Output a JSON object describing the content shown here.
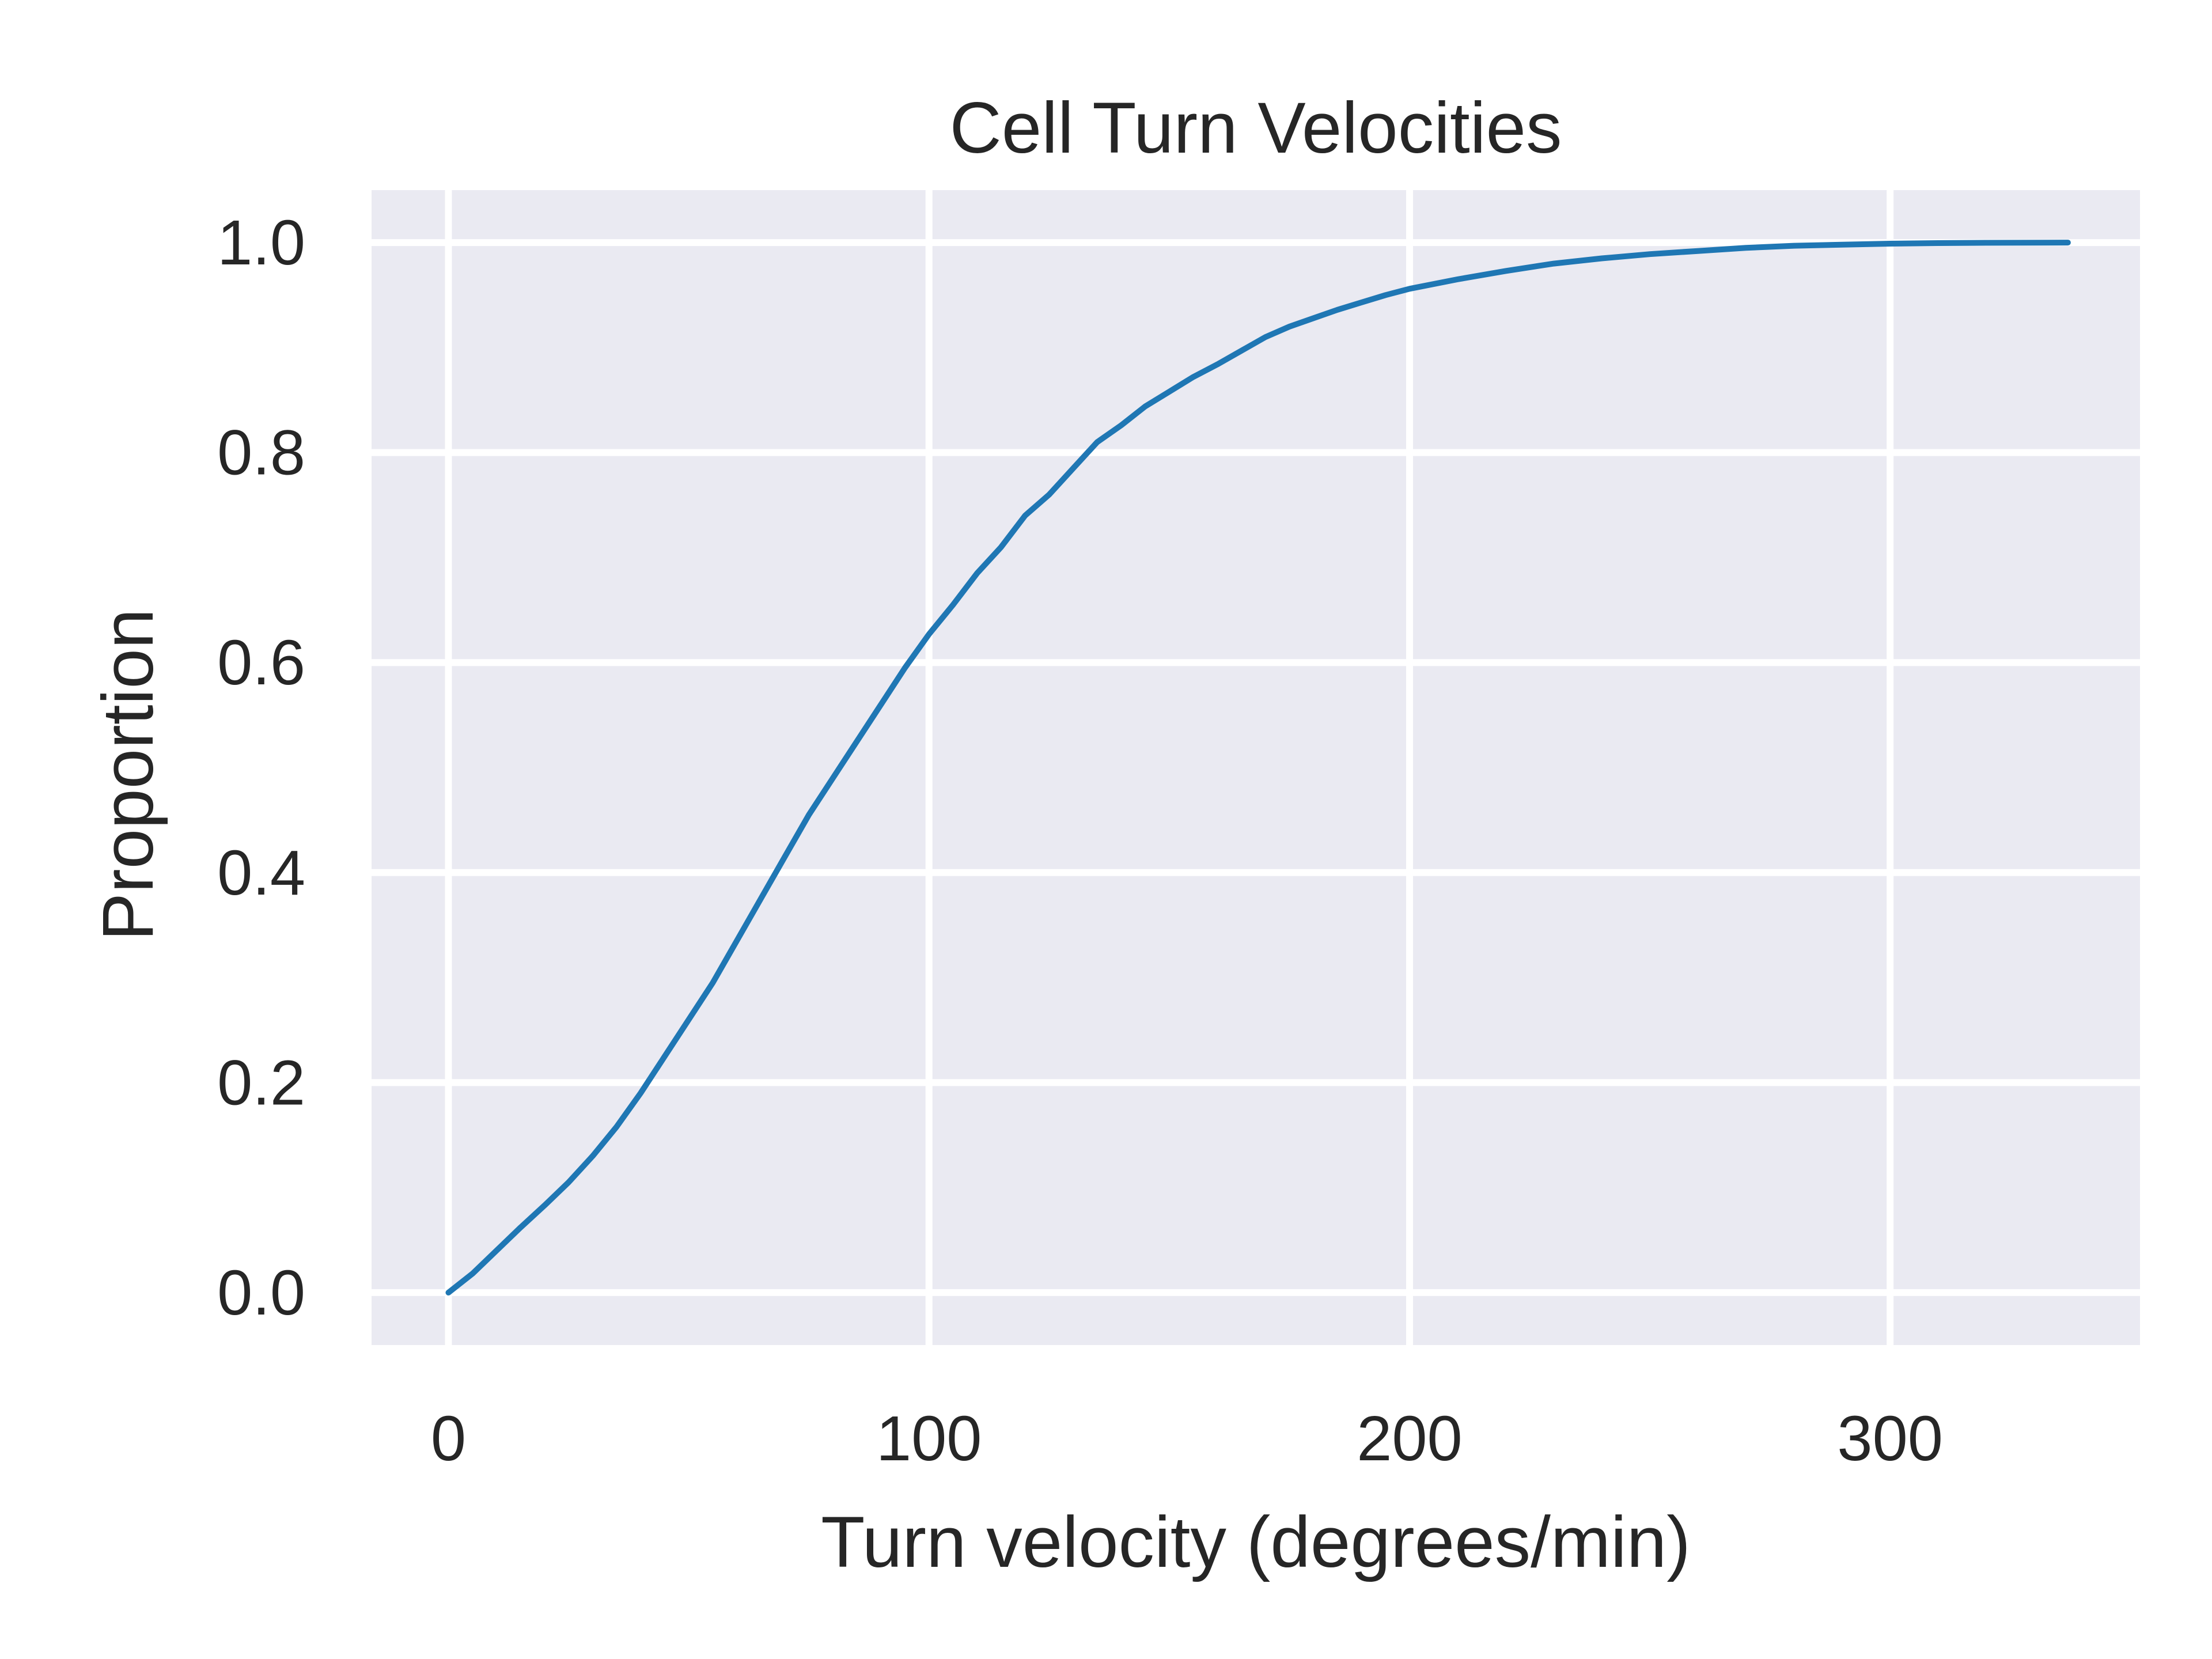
{
  "chart_data": {
    "type": "line",
    "title": "Cell Turn Velocities",
    "xlabel": "Turn velocity (degrees/min)",
    "ylabel": "Proportion",
    "xlim": [
      -16,
      352
    ],
    "ylim": [
      -0.05,
      1.05
    ],
    "xticks": [
      0,
      100,
      200,
      300
    ],
    "yticks": [
      0.0,
      0.2,
      0.4,
      0.6,
      0.8,
      1.0
    ],
    "xtick_labels": [
      "0",
      "100",
      "200",
      "300"
    ],
    "ytick_labels": [
      "0.0",
      "0.2",
      "0.4",
      "0.6",
      "0.8",
      "1.0"
    ],
    "grid": true,
    "colors": {
      "background": "#eaeaf2",
      "grid": "#ffffff",
      "line": "#1f77b4"
    },
    "series": [
      {
        "x": [
          0,
          5,
          10,
          15,
          20,
          25,
          30,
          35,
          40,
          45,
          50,
          55,
          60,
          65,
          70,
          75,
          80,
          85,
          90,
          95,
          100,
          105,
          110,
          115,
          120,
          125,
          130,
          135,
          140,
          145,
          150,
          155,
          160,
          165,
          170,
          175,
          180,
          185,
          190,
          195,
          200,
          210,
          220,
          230,
          240,
          250,
          260,
          270,
          280,
          290,
          300,
          310,
          320,
          337
        ],
        "y": [
          0.0,
          0.018,
          0.04,
          0.062,
          0.083,
          0.105,
          0.13,
          0.158,
          0.19,
          0.225,
          0.26,
          0.295,
          0.335,
          0.375,
          0.415,
          0.455,
          0.49,
          0.525,
          0.56,
          0.595,
          0.627,
          0.655,
          0.685,
          0.71,
          0.74,
          0.76,
          0.785,
          0.81,
          0.826,
          0.844,
          0.858,
          0.872,
          0.884,
          0.897,
          0.91,
          0.92,
          0.928,
          0.936,
          0.943,
          0.95,
          0.956,
          0.965,
          0.973,
          0.98,
          0.985,
          0.989,
          0.992,
          0.995,
          0.997,
          0.998,
          0.999,
          0.9995,
          0.9998,
          1.0
        ]
      }
    ]
  }
}
